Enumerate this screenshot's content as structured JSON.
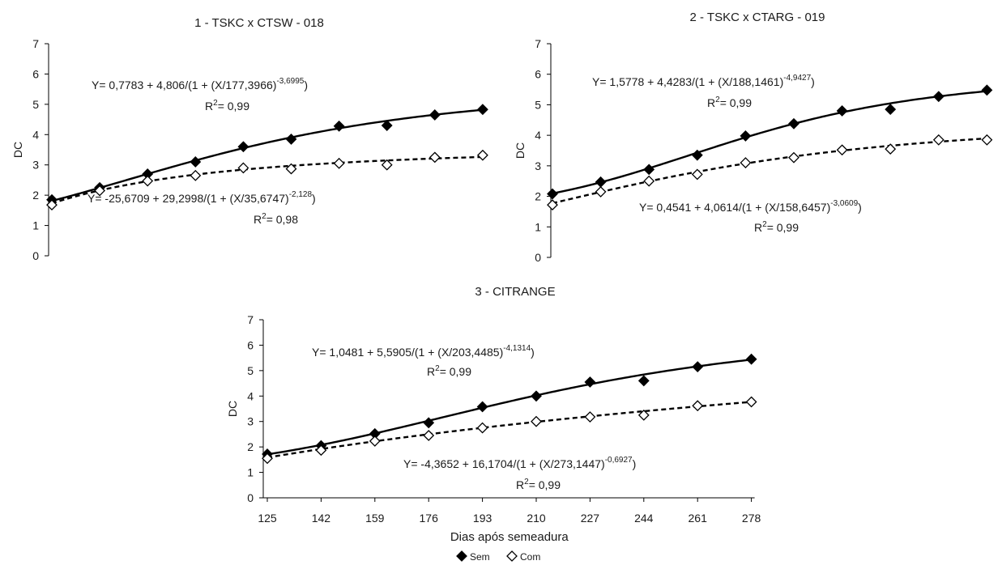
{
  "figure": {
    "xlabel": "Dias após semeadura",
    "legend": {
      "placement": "bottom-center",
      "entries": [
        {
          "label": "Sem",
          "marker": "filled-diamond",
          "line": "solid",
          "color": "#000000"
        },
        {
          "label": "Com",
          "marker": "open-diamond",
          "line": "dashed",
          "color": "#000000"
        }
      ]
    }
  },
  "chart_data": [
    {
      "type": "scatter",
      "title": "1 - TSKC x CTSW - 018",
      "ylabel": "DC",
      "xlabel": "",
      "x": [
        125,
        142,
        159,
        176,
        193,
        210,
        227,
        244,
        261,
        278
      ],
      "ylim": [
        0,
        7
      ],
      "yticks": [
        "0",
        "1",
        "2",
        "3",
        "4",
        "5",
        "6",
        "7"
      ],
      "grid": false,
      "series": [
        {
          "name": "Sem",
          "values": [
            1.85,
            2.25,
            2.7,
            3.1,
            3.6,
            3.85,
            4.28,
            4.3,
            4.65,
            4.83
          ],
          "fit": {
            "a": 0.7783,
            "b": 4.806,
            "c": 177.3966,
            "d": -3.6995
          },
          "equation": {
            "main": "Y= 0,7783 + 4,806/(1 + (X/177,3966)",
            "exp": "-3,6995",
            "close": ")",
            "r2": "= 0,99"
          }
        },
        {
          "name": "Com",
          "values": [
            1.68,
            2.15,
            2.47,
            2.65,
            2.9,
            2.87,
            3.05,
            3.0,
            3.25,
            3.32
          ],
          "fit": {
            "a": -25.6709,
            "b": 29.2998,
            "c": 35.6747,
            "d": -2.128
          },
          "equation": {
            "main": "Y= -25,6709 + 29,2998/(1 + (X/35,6747)",
            "exp": "-2,128",
            "close": ")",
            "r2": "= 0,98"
          }
        }
      ]
    },
    {
      "type": "scatter",
      "title": "2 - TSKC x CTARG - 019",
      "ylabel": "DC",
      "xlabel": "",
      "x": [
        125,
        142,
        159,
        176,
        193,
        210,
        227,
        244,
        261,
        278
      ],
      "ylim": [
        0,
        7
      ],
      "yticks": [
        "0",
        "1",
        "2",
        "3",
        "4",
        "5",
        "6",
        "7"
      ],
      "grid": false,
      "series": [
        {
          "name": "Sem",
          "values": [
            2.08,
            2.47,
            2.88,
            3.35,
            3.98,
            4.38,
            4.8,
            4.85,
            5.27,
            5.48
          ],
          "fit": {
            "a": 1.5778,
            "b": 4.4283,
            "c": 188.1461,
            "d": -4.9427
          },
          "equation": {
            "main": "Y= 1,5778 + 4,4283/(1 + (X/188,1461)",
            "exp": "-4,9427",
            "close": ")",
            "r2": "= 0,99"
          }
        },
        {
          "name": "Com",
          "values": [
            1.72,
            2.15,
            2.5,
            2.72,
            3.1,
            3.27,
            3.52,
            3.55,
            3.85,
            3.85
          ],
          "fit": {
            "a": 0.4541,
            "b": 4.0614,
            "c": 158.6457,
            "d": -3.0609
          },
          "equation": {
            "main": "Y= 0,4541 + 4,0614/(1 + (X/158,6457)",
            "exp": "-3,0609",
            "close": ")",
            "r2": "= 0,99"
          }
        }
      ]
    },
    {
      "type": "scatter",
      "title": "3 - CITRANGE",
      "ylabel": "DC",
      "xlabel": "Dias após semeadura",
      "x": [
        125,
        142,
        159,
        176,
        193,
        210,
        227,
        244,
        261,
        278
      ],
      "xticks": [
        "125",
        "142",
        "159",
        "176",
        "193",
        "210",
        "227",
        "244",
        "261",
        "278"
      ],
      "ylim": [
        0,
        7
      ],
      "yticks": [
        "0",
        "1",
        "2",
        "3",
        "4",
        "5",
        "6",
        "7"
      ],
      "grid": false,
      "series": [
        {
          "name": "Sem",
          "values": [
            1.72,
            2.05,
            2.52,
            2.95,
            3.58,
            4.0,
            4.55,
            4.6,
            5.15,
            5.45
          ],
          "fit": {
            "a": 1.0481,
            "b": 5.5905,
            "c": 203.4485,
            "d": -4.1314
          },
          "equation": {
            "main": "Y= 1,0481 + 5,5905/(1 + (X/203,4485)",
            "exp": "-4,1314",
            "close": ")",
            "r2": "= 0,99"
          }
        },
        {
          "name": "Com",
          "values": [
            1.55,
            1.87,
            2.23,
            2.45,
            2.75,
            3.0,
            3.18,
            3.25,
            3.62,
            3.77
          ],
          "fit": {
            "a": -4.3652,
            "b": 16.1704,
            "c": 273.1447,
            "d": -0.6927
          },
          "equation": {
            "main": "Y= -4,3652 + 16,1704/(1 + (X/273,1447)",
            "exp": "-0,6927",
            "close": ")",
            "r2": "= 0,99"
          }
        }
      ]
    }
  ]
}
